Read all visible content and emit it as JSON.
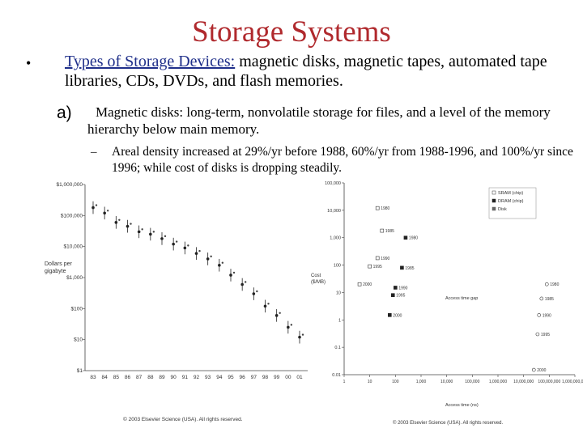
{
  "slide": {
    "title": "Storage Systems",
    "bullet_symbol": "•",
    "bullet_heading": "Types of Storage Devices:",
    "bullet_text": " magnetic disks, magnetic tapes, automated tape libraries, CDs, DVDs, and flash memories.",
    "sub_label": "a)",
    "sub_text": "Magnetic disks: long-term, nonvolatile storage for files, and a level of the memory hierarchy below main memory.",
    "dash_symbol": "–",
    "dash_text": "Areal density increased at 29%/yr before 1988, 60%/yr from 1988-1996, and 100%/yr since 1996; while cost of disks is dropping steadily."
  },
  "chart_data": [
    {
      "type": "scatter",
      "title": "",
      "ylabel": "Dollars per gigabyte",
      "xlabel": "",
      "yscale": "log",
      "ylim": [
        1,
        1000000
      ],
      "y_ticks": [
        "$1,000,000",
        "$100,000",
        "$10,000",
        "$1,000",
        "$100",
        "$10",
        "$1"
      ],
      "y_tick_values": [
        1000000,
        100000,
        10000,
        1000,
        100,
        10,
        1
      ],
      "categories": [
        "83",
        "84",
        "85",
        "86",
        "87",
        "88",
        "89",
        "90",
        "91",
        "92",
        "93",
        "94",
        "95",
        "96",
        "97",
        "98",
        "99",
        "00",
        "01"
      ],
      "values": [
        180000,
        120000,
        60000,
        45000,
        30000,
        25000,
        18000,
        12000,
        9000,
        6000,
        4000,
        2500,
        1200,
        600,
        300,
        120,
        60,
        25,
        12
      ],
      "series": [
        {
          "values": [
            180000,
            120000,
            60000,
            45000,
            30000,
            25000,
            18000,
            12000,
            9000,
            6000,
            4000,
            2500,
            1200,
            600,
            300,
            120,
            60,
            25,
            12
          ]
        }
      ],
      "copyright": "© 2003 Elsevier Science (USA). All rights reserved."
    },
    {
      "type": "scatter",
      "title": "",
      "ylabel": "Cost ($/MB)",
      "xlabel": "Access time (ns)",
      "xscale": "log",
      "yscale": "log",
      "xlim": [
        1,
        1000000000
      ],
      "ylim": [
        0.01,
        100000
      ],
      "x_ticks": [
        "1",
        "10",
        "100",
        "1,000",
        "10,000",
        "100,000",
        "1,000,000",
        "10,000,000",
        "100,000,000",
        "1,000,000,000"
      ],
      "y_ticks": [
        "100,000",
        "10,000",
        "1,000",
        "100",
        "10",
        "1",
        "0.1",
        "0.01"
      ],
      "y_tick_values": [
        100000,
        10000,
        1000,
        100,
        10,
        1,
        0.1,
        0.01
      ],
      "legend": [
        "SRAM (chip)",
        "DRAM (chip)",
        "Disk"
      ],
      "legend_position": "top-right",
      "annotations": [
        "Access time gap"
      ],
      "series": [
        {
          "name": "SRAM (chip)",
          "points": [
            {
              "x": 20,
              "y": 12000,
              "label": "1980"
            },
            {
              "x": 30,
              "y": 1800,
              "label": "1985"
            },
            {
              "x": 20,
              "y": 180,
              "label": "1990"
            },
            {
              "x": 10,
              "y": 90,
              "label": "1995"
            },
            {
              "x": 4,
              "y": 20,
              "label": "2000"
            }
          ]
        },
        {
          "name": "DRAM (chip)",
          "points": [
            {
              "x": 250,
              "y": 1000,
              "label": "1980"
            },
            {
              "x": 180,
              "y": 80,
              "label": "1985"
            },
            {
              "x": 100,
              "y": 15,
              "label": "1990"
            },
            {
              "x": 80,
              "y": 8,
              "label": "1995"
            },
            {
              "x": 60,
              "y": 1.5,
              "label": "2000"
            }
          ]
        },
        {
          "name": "Disk",
          "points": [
            {
              "x": 80000000,
              "y": 20,
              "label": "1980"
            },
            {
              "x": 50000000,
              "y": 6,
              "label": "1985"
            },
            {
              "x": 40000000,
              "y": 1.5,
              "label": "1990"
            },
            {
              "x": 35000000,
              "y": 0.3,
              "label": "1995"
            },
            {
              "x": 25000000,
              "y": 0.015,
              "label": "2000"
            }
          ]
        }
      ],
      "copyright": "© 2003 Elsevier Science (USA). All rights reserved."
    }
  ]
}
